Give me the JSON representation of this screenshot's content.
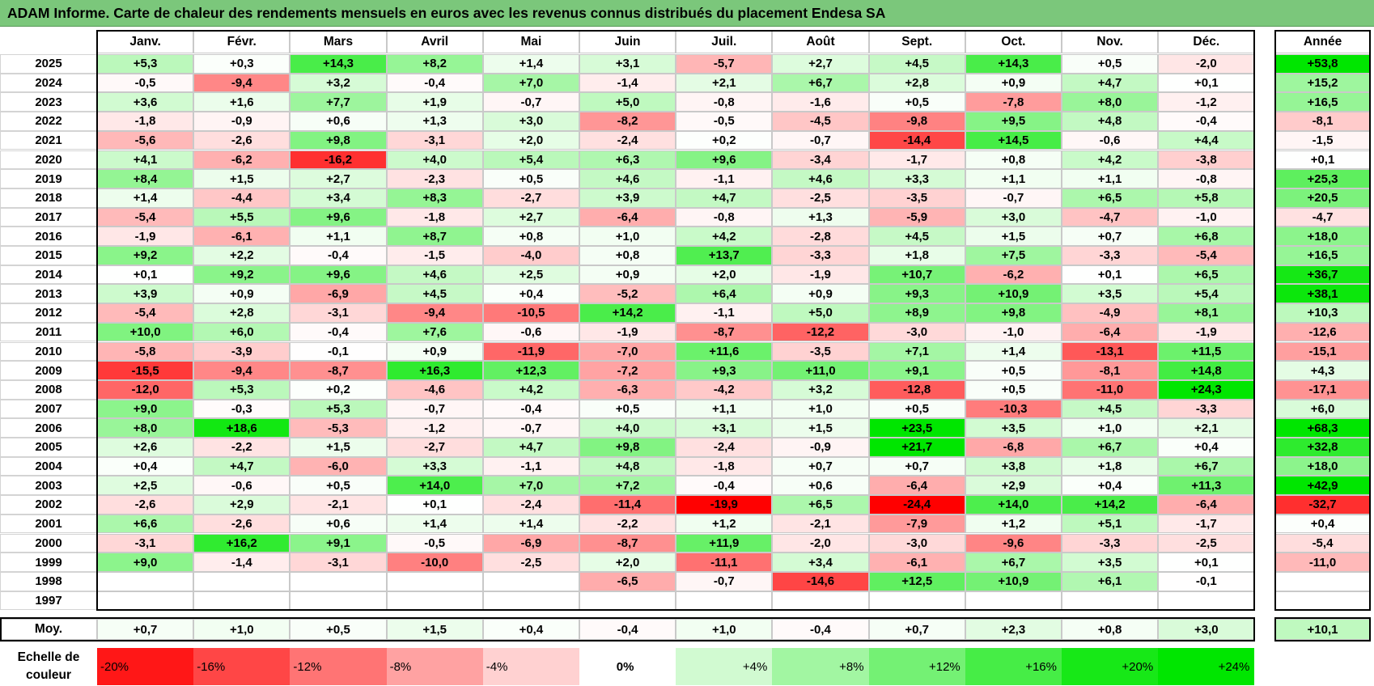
{
  "title": "ADAM Informe. Carte de chaleur des rendements mensuels en euros avec les revenus connus distribués du placement Endesa SA",
  "chart_data": {
    "type": "heatmap",
    "title": "ADAM Informe. Carte de chaleur des rendements mensuels en euros avec les revenus connus distribués du placement Endesa SA",
    "months": [
      "Janv.",
      "Févr.",
      "Mars",
      "Avril",
      "Mai",
      "Juin",
      "Juil.",
      "Août",
      "Sept.",
      "Oct.",
      "Nov.",
      "Déc."
    ],
    "year_label": "Année",
    "avg_label": "Moy.",
    "rows": [
      {
        "year": "2025",
        "values": [
          "+5,3",
          "+0,3",
          "+14,3",
          "+8,2",
          "+1,4",
          "+3,1",
          "-5,7",
          "+2,7",
          "+4,5",
          "+14,3",
          "+0,5",
          "-2,0"
        ],
        "annual": "+53,8"
      },
      {
        "year": "2024",
        "values": [
          "-0,5",
          "-9,4",
          "+3,2",
          "-0,4",
          "+7,0",
          "-1,4",
          "+2,1",
          "+6,7",
          "+2,8",
          "+0,9",
          "+4,7",
          "+0,1"
        ],
        "annual": "+15,2"
      },
      {
        "year": "2023",
        "values": [
          "+3,6",
          "+1,6",
          "+7,7",
          "+1,9",
          "-0,7",
          "+5,0",
          "-0,8",
          "-1,6",
          "+0,5",
          "-7,8",
          "+8,0",
          "-1,2"
        ],
        "annual": "+16,5"
      },
      {
        "year": "2022",
        "values": [
          "-1,8",
          "-0,9",
          "+0,6",
          "+1,3",
          "+3,0",
          "-8,2",
          "-0,5",
          "-4,5",
          "-9,8",
          "+9,5",
          "+4,8",
          "-0,4"
        ],
        "annual": "-8,1"
      },
      {
        "year": "2021",
        "values": [
          "-5,6",
          "-2,6",
          "+9,8",
          "-3,1",
          "+2,0",
          "-2,4",
          "+0,2",
          "-0,7",
          "-14,4",
          "+14,5",
          "-0,6",
          "+4,4"
        ],
        "annual": "-1,5"
      },
      {
        "year": "2020",
        "values": [
          "+4,1",
          "-6,2",
          "-16,2",
          "+4,0",
          "+5,4",
          "+6,3",
          "+9,6",
          "-3,4",
          "-1,7",
          "+0,8",
          "+4,2",
          "-3,8"
        ],
        "annual": "+0,1"
      },
      {
        "year": "2019",
        "values": [
          "+8,4",
          "+1,5",
          "+2,7",
          "-2,3",
          "+0,5",
          "+4,6",
          "-1,1",
          "+4,6",
          "+3,3",
          "+1,1",
          "+1,1",
          "-0,8"
        ],
        "annual": "+25,3"
      },
      {
        "year": "2018",
        "values": [
          "+1,4",
          "-4,4",
          "+3,4",
          "+8,3",
          "-2,7",
          "+3,9",
          "+4,7",
          "-2,5",
          "-3,5",
          "-0,7",
          "+6,5",
          "+5,8"
        ],
        "annual": "+20,5"
      },
      {
        "year": "2017",
        "values": [
          "-5,4",
          "+5,5",
          "+9,6",
          "-1,8",
          "+2,7",
          "-6,4",
          "-0,8",
          "+1,3",
          "-5,9",
          "+3,0",
          "-4,7",
          "-1,0"
        ],
        "annual": "-4,7"
      },
      {
        "year": "2016",
        "values": [
          "-1,9",
          "-6,1",
          "+1,1",
          "+8,7",
          "+0,8",
          "+1,0",
          "+4,2",
          "-2,8",
          "+4,5",
          "+1,5",
          "+0,7",
          "+6,8"
        ],
        "annual": "+18,0"
      },
      {
        "year": "2015",
        "values": [
          "+9,2",
          "+2,2",
          "-0,4",
          "-1,5",
          "-4,0",
          "+0,8",
          "+13,7",
          "-3,3",
          "+1,8",
          "+7,5",
          "-3,3",
          "-5,4"
        ],
        "annual": "+16,5"
      },
      {
        "year": "2014",
        "values": [
          "+0,1",
          "+9,2",
          "+9,6",
          "+4,6",
          "+2,5",
          "+0,9",
          "+2,0",
          "-1,9",
          "+10,7",
          "-6,2",
          "+0,1",
          "+6,5"
        ],
        "annual": "+36,7"
      },
      {
        "year": "2013",
        "values": [
          "+3,9",
          "+0,9",
          "-6,9",
          "+4,5",
          "+0,4",
          "-5,2",
          "+6,4",
          "+0,9",
          "+9,3",
          "+10,9",
          "+3,5",
          "+5,4"
        ],
        "annual": "+38,1"
      },
      {
        "year": "2012",
        "values": [
          "-5,4",
          "+2,8",
          "-3,1",
          "-9,4",
          "-10,5",
          "+14,2",
          "-1,1",
          "+5,0",
          "+8,9",
          "+9,8",
          "-4,9",
          "+8,1"
        ],
        "annual": "+10,3"
      },
      {
        "year": "2011",
        "values": [
          "+10,0",
          "+6,0",
          "-0,4",
          "+7,6",
          "-0,6",
          "-1,9",
          "-8,7",
          "-12,2",
          "-3,0",
          "-1,0",
          "-6,4",
          "-1,9"
        ],
        "annual": "-12,6"
      },
      {
        "year": "2010",
        "values": [
          "-5,8",
          "-3,9",
          "-0,1",
          "+0,9",
          "-11,9",
          "-7,0",
          "+11,6",
          "-3,5",
          "+7,1",
          "+1,4",
          "-13,1",
          "+11,5"
        ],
        "annual": "-15,1"
      },
      {
        "year": "2009",
        "values": [
          "-15,5",
          "-9,4",
          "-8,7",
          "+16,3",
          "+12,3",
          "-7,2",
          "+9,3",
          "+11,0",
          "+9,1",
          "+0,5",
          "-8,1",
          "+14,8"
        ],
        "annual": "+4,3"
      },
      {
        "year": "2008",
        "values": [
          "-12,0",
          "+5,3",
          "+0,2",
          "-4,6",
          "+4,2",
          "-6,3",
          "-4,2",
          "+3,2",
          "-12,8",
          "+0,5",
          "-11,0",
          "+24,3"
        ],
        "annual": "-17,1"
      },
      {
        "year": "2007",
        "values": [
          "+9,0",
          "-0,3",
          "+5,3",
          "-0,7",
          "-0,4",
          "+0,5",
          "+1,1",
          "+1,0",
          "+0,5",
          "-10,3",
          "+4,5",
          "-3,3"
        ],
        "annual": "+6,0"
      },
      {
        "year": "2006",
        "values": [
          "+8,0",
          "+18,6",
          "-5,3",
          "-1,2",
          "-0,7",
          "+4,0",
          "+3,1",
          "+1,5",
          "+23,5",
          "+3,5",
          "+1,0",
          "+2,1"
        ],
        "annual": "+68,3"
      },
      {
        "year": "2005",
        "values": [
          "+2,6",
          "-2,2",
          "+1,5",
          "-2,7",
          "+4,7",
          "+9,8",
          "-2,4",
          "-0,9",
          "+21,7",
          "-6,8",
          "+6,7",
          "+0,4"
        ],
        "annual": "+32,8"
      },
      {
        "year": "2004",
        "values": [
          "+0,4",
          "+4,7",
          "-6,0",
          "+3,3",
          "-1,1",
          "+4,8",
          "-1,8",
          "+0,7",
          "+0,7",
          "+3,8",
          "+1,8",
          "+6,7"
        ],
        "annual": "+18,0"
      },
      {
        "year": "2003",
        "values": [
          "+2,5",
          "-0,6",
          "+0,5",
          "+14,0",
          "+7,0",
          "+7,2",
          "-0,4",
          "+0,6",
          "-6,4",
          "+2,9",
          "+0,4",
          "+11,3"
        ],
        "annual": "+42,9"
      },
      {
        "year": "2002",
        "values": [
          "-2,6",
          "+2,9",
          "-2,1",
          "+0,1",
          "-2,4",
          "-11,4",
          "-19,9",
          "+6,5",
          "-24,4",
          "+14,0",
          "+14,2",
          "-6,4"
        ],
        "annual": "-32,7"
      },
      {
        "year": "2001",
        "values": [
          "+6,6",
          "-2,6",
          "+0,6",
          "+1,4",
          "+1,4",
          "-2,2",
          "+1,2",
          "-2,1",
          "-7,9",
          "+1,2",
          "+5,1",
          "-1,7"
        ],
        "annual": "+0,4"
      },
      {
        "year": "2000",
        "values": [
          "-3,1",
          "+16,2",
          "+9,1",
          "-0,5",
          "-6,9",
          "-8,7",
          "+11,9",
          "-2,0",
          "-3,0",
          "-9,6",
          "-3,3",
          "-2,5"
        ],
        "annual": "-5,4"
      },
      {
        "year": "1999",
        "values": [
          "+9,0",
          "-1,4",
          "-3,1",
          "-10,0",
          "-2,5",
          "+2,0",
          "-11,1",
          "+3,4",
          "-6,1",
          "+6,7",
          "+3,5",
          "+0,1"
        ],
        "annual": "-11,0"
      },
      {
        "year": "1998",
        "values": [
          "",
          "",
          "",
          "",
          "",
          "-6,5",
          "-0,7",
          "-14,6",
          "+12,5",
          "+10,9",
          "+6,1",
          "-0,1"
        ],
        "annual": ""
      },
      {
        "year": "1997",
        "values": [
          "",
          "",
          "",
          "",
          "",
          "",
          "",
          "",
          "",
          "",
          "",
          ""
        ],
        "annual": ""
      }
    ],
    "averages": [
      "+0,7",
      "+1,0",
      "+0,5",
      "+1,5",
      "+0,4",
      "-0,4",
      "+1,0",
      "-0,4",
      "+0,7",
      "+2,3",
      "+0,8",
      "+3,0"
    ],
    "annual_average": "+10,1",
    "scale_label_line1": "Echelle de",
    "scale_label_line2": "couleur",
    "scale": [
      "-20%",
      "-16%",
      "-12%",
      "-8%",
      "-4%",
      "0%",
      "+4%",
      "+8%",
      "+12%",
      "+16%",
      "+20%",
      "+24%"
    ],
    "colors": {
      "title_bg": "#7bc77b",
      "max_negative": "#ff0000",
      "neutral": "#ffffff",
      "max_positive": "#00e600"
    }
  }
}
